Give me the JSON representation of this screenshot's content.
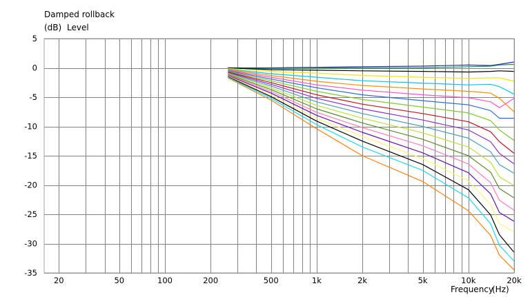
{
  "chart_data": {
    "type": "line",
    "title": "Damped rollback",
    "ylabel_unit": "(dB)",
    "ylabel": "Level",
    "xlabel": "Frequency",
    "xlabel_unit": "(Hz)",
    "x_scale": "log",
    "xlim": [
      16,
      20000
    ],
    "ylim": [
      -35,
      5
    ],
    "grid": true,
    "legend": "none",
    "x_tick_labels": [
      {
        "value": 20,
        "label": "20"
      },
      {
        "value": 50,
        "label": "50"
      },
      {
        "value": 100,
        "label": "100"
      },
      {
        "value": 200,
        "label": "200"
      },
      {
        "value": 500,
        "label": "500"
      },
      {
        "value": 1000,
        "label": "1k"
      },
      {
        "value": 2000,
        "label": "2k"
      },
      {
        "value": 5000,
        "label": "5k"
      },
      {
        "value": 10000,
        "label": "10k"
      },
      {
        "value": 20000,
        "label": "20k"
      }
    ],
    "y_ticks": [
      5,
      0,
      -5,
      -10,
      -15,
      -20,
      -25,
      -30,
      -35
    ],
    "x": [
      260,
      500,
      1000,
      2000,
      5000,
      10000,
      14000,
      16000,
      20000
    ],
    "series": [
      {
        "color": "#1b2fa8",
        "values": [
          0.0,
          0.0,
          0.1,
          0.2,
          0.3,
          0.5,
          0.4,
          0.6,
          1.0
        ]
      },
      {
        "color": "#1e8b55",
        "values": [
          0.0,
          -0.1,
          0.0,
          0.0,
          0.0,
          0.2,
          0.3,
          0.5,
          0.6
        ]
      },
      {
        "color": "#000000",
        "values": [
          0.0,
          -0.3,
          -0.4,
          -0.5,
          -0.6,
          -0.7,
          -0.6,
          -0.5,
          -0.6
        ]
      },
      {
        "color": "#f2e600",
        "values": [
          -0.1,
          -0.6,
          -0.9,
          -1.3,
          -1.6,
          -1.8,
          -1.7,
          -1.7,
          -2.3
        ]
      },
      {
        "color": "#00c6e8",
        "values": [
          -0.2,
          -1.0,
          -1.6,
          -2.2,
          -2.6,
          -2.9,
          -2.8,
          -3.2,
          -4.5
        ]
      },
      {
        "color": "#ff8c00",
        "values": [
          -0.3,
          -1.3,
          -2.3,
          -3.0,
          -3.6,
          -4.0,
          -4.3,
          -5.2,
          -7.5
        ]
      },
      {
        "color": "#ff4fc8",
        "values": [
          -0.4,
          -1.6,
          -2.9,
          -3.8,
          -4.6,
          -5.1,
          -5.8,
          -6.8,
          -5.2
        ]
      },
      {
        "color": "#2b6fd4",
        "values": [
          -0.5,
          -1.9,
          -3.4,
          -4.6,
          -5.6,
          -6.3,
          -7.3,
          -8.6,
          -8.6
        ]
      },
      {
        "color": "#7ec92a",
        "values": [
          -0.6,
          -2.2,
          -4.0,
          -5.4,
          -6.7,
          -7.7,
          -9.0,
          -10.6,
          -12.4
        ]
      },
      {
        "color": "#c1121f",
        "values": [
          -0.7,
          -2.5,
          -4.6,
          -6.2,
          -7.8,
          -9.2,
          -10.9,
          -12.6,
          -14.6
        ]
      },
      {
        "color": "#8b2fc9",
        "values": [
          -0.8,
          -2.8,
          -5.2,
          -7.0,
          -8.9,
          -10.6,
          -12.6,
          -14.6,
          -16.4
        ]
      },
      {
        "color": "#46a0b8",
        "values": [
          -0.9,
          -3.1,
          -5.8,
          -7.8,
          -10.0,
          -12.0,
          -14.3,
          -16.5,
          -18.0
        ]
      },
      {
        "color": "#b7e03a",
        "values": [
          -1.0,
          -3.4,
          -6.4,
          -8.6,
          -11.1,
          -13.5,
          -16.1,
          -18.6,
          -20.1
        ]
      },
      {
        "color": "#5a8a2a",
        "values": [
          -1.1,
          -3.7,
          -7.0,
          -9.4,
          -12.2,
          -15.0,
          -17.8,
          -20.6,
          -22.2
        ]
      },
      {
        "color": "#ff7ab8",
        "values": [
          -1.2,
          -4.0,
          -7.6,
          -10.2,
          -13.3,
          -16.4,
          -19.6,
          -22.6,
          -24.3
        ]
      },
      {
        "color": "#6a0dad",
        "values": [
          -1.3,
          -4.3,
          -8.1,
          -11.0,
          -14.5,
          -17.9,
          -21.5,
          -24.7,
          -26.2
        ]
      },
      {
        "color": "#fff27a",
        "values": [
          -1.4,
          -4.6,
          -8.6,
          -11.7,
          -15.5,
          -19.3,
          -23.3,
          -26.6,
          -28.0
        ]
      },
      {
        "color": "#000000",
        "values": [
          -1.5,
          -4.9,
          -9.1,
          -12.5,
          -16.5,
          -20.8,
          -25.1,
          -28.5,
          -31.5
        ]
      },
      {
        "color": "#22d4f0",
        "values": [
          -1.6,
          -5.2,
          -9.7,
          -13.5,
          -17.5,
          -22.2,
          -26.6,
          -30.3,
          -33.0
        ]
      },
      {
        "color": "#ff7f0e",
        "values": [
          -1.7,
          -5.5,
          -10.4,
          -15.0,
          -19.4,
          -24.4,
          -28.6,
          -32.0,
          -34.5
        ]
      }
    ]
  }
}
